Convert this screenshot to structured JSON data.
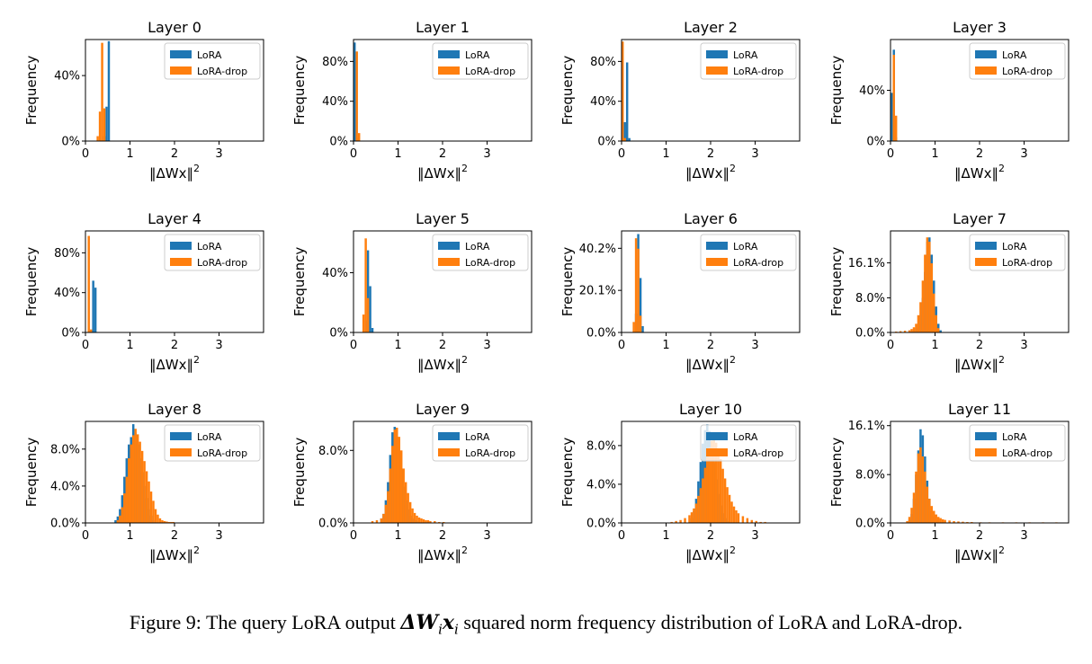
{
  "colors": {
    "lora": "#1f77b4",
    "lora_drop": "#ff7f0e"
  },
  "common": {
    "ylabel": "Frequency",
    "xlabel_prefix": "‖ΔWx‖",
    "xlabel_sup": "2",
    "xticks": [
      0,
      1,
      2,
      3
    ],
    "xlim": [
      0,
      4
    ],
    "legend": [
      "LoRA",
      "LoRA-drop"
    ],
    "legend_position": "top-right",
    "grid": false
  },
  "caption": {
    "prefix": "Figure 9: The query LoRA output ",
    "math": "ΔW",
    "math_sub1": "i",
    "math2": "x",
    "math_sub2": "i",
    "suffix": " squared norm frequency distribution of LoRA and LoRA-drop."
  },
  "chart_data": [
    {
      "type": "bar",
      "title": "Layer 0",
      "ylim": [
        0,
        62
      ],
      "yticks": [
        {
          "v": 0,
          "label": "0%"
        },
        {
          "v": 40,
          "label": "40%"
        }
      ],
      "bin_width": 0.05,
      "series": [
        {
          "name": "LoRA",
          "x": [
            0.4,
            0.45,
            0.5
          ],
          "values": [
            3,
            21,
            61
          ]
        },
        {
          "name": "LoRA-drop",
          "x": [
            0.25,
            0.3,
            0.35,
            0.4
          ],
          "values": [
            3,
            18,
            60,
            20
          ]
        }
      ]
    },
    {
      "type": "bar",
      "title": "Layer 1",
      "ylim": [
        0,
        102
      ],
      "yticks": [
        {
          "v": 0,
          "label": "0%"
        },
        {
          "v": 40,
          "label": "40%"
        },
        {
          "v": 80,
          "label": "80%"
        }
      ],
      "bin_width": 0.05,
      "series": [
        {
          "name": "LoRA",
          "x": [
            0.0,
            0.05
          ],
          "values": [
            99,
            3
          ]
        },
        {
          "name": "LoRA-drop",
          "x": [
            0.05,
            0.1
          ],
          "values": [
            90,
            8
          ]
        }
      ]
    },
    {
      "type": "bar",
      "title": "Layer 2",
      "ylim": [
        0,
        102
      ],
      "yticks": [
        {
          "v": 0,
          "label": "0%"
        },
        {
          "v": 40,
          "label": "40%"
        },
        {
          "v": 80,
          "label": "80%"
        }
      ],
      "bin_width": 0.05,
      "series": [
        {
          "name": "LoRA",
          "x": [
            0.0,
            0.05,
            0.1,
            0.15
          ],
          "values": [
            3,
            19,
            79,
            3
          ]
        },
        {
          "name": "LoRA-drop",
          "x": [
            0.0,
            0.05
          ],
          "values": [
            100,
            3
          ]
        }
      ]
    },
    {
      "type": "bar",
      "title": "Layer 3",
      "ylim": [
        0,
        80
      ],
      "yticks": [
        {
          "v": 0,
          "label": "0%"
        },
        {
          "v": 40,
          "label": "40%"
        }
      ],
      "bin_width": 0.05,
      "series": [
        {
          "name": "LoRA",
          "x": [
            0.0,
            0.05,
            0.1
          ],
          "values": [
            38,
            72,
            3
          ]
        },
        {
          "name": "LoRA-drop",
          "x": [
            0.05,
            0.1
          ],
          "values": [
            68,
            20
          ]
        }
      ]
    },
    {
      "type": "bar",
      "title": "Layer 4",
      "ylim": [
        0,
        102
      ],
      "yticks": [
        {
          "v": 0,
          "label": "0%"
        },
        {
          "v": 40,
          "label": "40%"
        },
        {
          "v": 80,
          "label": "80%"
        }
      ],
      "bin_width": 0.05,
      "series": [
        {
          "name": "LoRA",
          "x": [
            0.1,
            0.15,
            0.2
          ],
          "values": [
            2,
            52,
            45
          ]
        },
        {
          "name": "LoRA-drop",
          "x": [
            0.05,
            0.1
          ],
          "values": [
            97,
            3
          ]
        }
      ]
    },
    {
      "type": "bar",
      "title": "Layer 5",
      "ylim": [
        0,
        68
      ],
      "yticks": [
        {
          "v": 0,
          "label": "0%"
        },
        {
          "v": 40,
          "label": "40%"
        }
      ],
      "bin_width": 0.05,
      "series": [
        {
          "name": "LoRA",
          "x": [
            0.25,
            0.3,
            0.35,
            0.4
          ],
          "values": [
            8,
            55,
            31,
            3
          ]
        },
        {
          "name": "LoRA-drop",
          "x": [
            0.2,
            0.25,
            0.3
          ],
          "values": [
            12,
            63,
            23
          ]
        }
      ]
    },
    {
      "type": "bar",
      "title": "Layer 6",
      "ylim": [
        0,
        48.5
      ],
      "yticks": [
        {
          "v": 0,
          "label": "0.0%"
        },
        {
          "v": 20.1,
          "label": "20.1%"
        },
        {
          "v": 40.2,
          "label": "40.2%"
        }
      ],
      "bin_width": 0.05,
      "series": [
        {
          "name": "LoRA",
          "x": [
            0.3,
            0.35,
            0.4,
            0.45
          ],
          "values": [
            9,
            47,
            26,
            3
          ]
        },
        {
          "name": "LoRA-drop",
          "x": [
            0.25,
            0.3,
            0.35,
            0.4
          ],
          "values": [
            5,
            45,
            40,
            8
          ]
        }
      ]
    },
    {
      "type": "bar",
      "title": "Layer 7",
      "ylim": [
        0,
        23.5
      ],
      "yticks": [
        {
          "v": 0,
          "label": "0.0%"
        },
        {
          "v": 8.0,
          "label": "8.0%"
        },
        {
          "v": 16.1,
          "label": "16.1%"
        }
      ],
      "bin_width": 0.05,
      "series": [
        {
          "name": "LoRA",
          "x": [
            0.5,
            0.55,
            0.6,
            0.65,
            0.7,
            0.75,
            0.8,
            0.85,
            0.9,
            0.95,
            1.0,
            1.05,
            1.1
          ],
          "values": [
            0.5,
            1,
            2,
            4,
            8,
            14,
            21,
            22,
            18,
            12,
            6,
            2,
            0.5
          ]
        },
        {
          "name": "LoRA-drop",
          "x": [
            0.1,
            0.2,
            0.3,
            0.4,
            0.45,
            0.5,
            0.55,
            0.6,
            0.65,
            0.7,
            0.75,
            0.8,
            0.85,
            0.9,
            0.95,
            1.0,
            1.05
          ],
          "values": [
            0.2,
            0.3,
            0.4,
            0.5,
            0.8,
            1.2,
            2,
            4,
            7,
            12,
            18,
            22,
            21,
            16,
            9,
            4,
            1
          ]
        }
      ]
    },
    {
      "type": "bar",
      "title": "Layer 8",
      "ylim": [
        0,
        11
      ],
      "yticks": [
        {
          "v": 0,
          "label": "0.0%"
        },
        {
          "v": 4.0,
          "label": "4.0%"
        },
        {
          "v": 8.0,
          "label": "8.0%"
        }
      ],
      "bin_width": 0.05,
      "series": [
        {
          "name": "LoRA",
          "x": [
            0.65,
            0.7,
            0.75,
            0.8,
            0.85,
            0.9,
            0.95,
            1.0,
            1.05,
            1.1,
            1.15,
            1.2,
            1.25,
            1.3,
            1.35,
            1.4,
            1.45,
            1.5
          ],
          "values": [
            0.3,
            0.7,
            1.5,
            3,
            5,
            7,
            8.5,
            9.3,
            10.7,
            9.8,
            8.5,
            7,
            5.5,
            4,
            2.7,
            1.5,
            0.8,
            0.3
          ]
        },
        {
          "name": "LoRA-drop",
          "x": [
            0.7,
            0.75,
            0.8,
            0.85,
            0.9,
            0.95,
            1.0,
            1.05,
            1.1,
            1.15,
            1.2,
            1.25,
            1.3,
            1.35,
            1.4,
            1.45,
            1.5,
            1.55,
            1.6,
            1.65,
            1.7,
            1.75,
            1.8,
            1.85,
            1.9,
            1.95
          ],
          "values": [
            0.3,
            0.8,
            1.7,
            3.2,
            5,
            7,
            8.5,
            9.5,
            10.2,
            9.6,
            8.8,
            7.8,
            6.7,
            5.6,
            4.5,
            3.4,
            2.4,
            1.5,
            0.9,
            0.5,
            0.3,
            0.2,
            0.15,
            0.1,
            0.1,
            0.1
          ]
        }
      ]
    },
    {
      "type": "bar",
      "title": "Layer 9",
      "ylim": [
        0,
        11.2
      ],
      "yticks": [
        {
          "v": 0,
          "label": "0.0%"
        },
        {
          "v": 8.0,
          "label": "8.0%"
        }
      ],
      "bin_width": 0.05,
      "series": [
        {
          "name": "LoRA",
          "x": [
            0.6,
            0.65,
            0.7,
            0.75,
            0.8,
            0.85,
            0.9,
            0.95,
            1.0,
            1.05,
            1.1,
            1.15,
            1.2,
            1.25,
            1.3,
            1.35,
            1.4
          ],
          "values": [
            0.5,
            1,
            2.5,
            4.5,
            7.5,
            10,
            10.6,
            9.5,
            8,
            6,
            4,
            2.5,
            1.5,
            0.8,
            0.5,
            0.3,
            0.2
          ]
        },
        {
          "name": "LoRA-drop",
          "x": [
            0.4,
            0.5,
            0.6,
            0.65,
            0.7,
            0.75,
            0.8,
            0.85,
            0.9,
            0.95,
            1.0,
            1.05,
            1.1,
            1.15,
            1.2,
            1.25,
            1.3,
            1.35,
            1.4,
            1.45,
            1.5,
            1.55,
            1.6,
            1.65,
            1.7,
            1.8,
            1.9,
            2.0
          ],
          "values": [
            0.2,
            0.3,
            0.5,
            1,
            2,
            3.5,
            6,
            8.5,
            10.3,
            10.5,
            9.5,
            8,
            6,
            4.5,
            3.3,
            2.3,
            1.6,
            1.1,
            0.8,
            0.6,
            0.5,
            0.4,
            0.3,
            0.3,
            0.2,
            0.2,
            0.1,
            0.1
          ]
        }
      ]
    },
    {
      "type": "bar",
      "title": "Layer 10",
      "ylim": [
        0,
        10.5
      ],
      "yticks": [
        {
          "v": 0,
          "label": "0.0%"
        },
        {
          "v": 4.0,
          "label": "4.0%"
        },
        {
          "v": 8.0,
          "label": "8.0%"
        }
      ],
      "bin_width": 0.05,
      "series": [
        {
          "name": "LoRA",
          "x": [
            1.55,
            1.6,
            1.65,
            1.7,
            1.75,
            1.8,
            1.85,
            1.9,
            1.95,
            2.0,
            2.05,
            2.1,
            2.15,
            2.2,
            2.25,
            2.3,
            2.35
          ],
          "values": [
            0.5,
            1.2,
            2.5,
            4.3,
            6.3,
            8.2,
            9.6,
            10.2,
            9.5,
            8,
            6.2,
            4.5,
            3,
            1.8,
            1,
            0.5,
            0.2
          ]
        },
        {
          "name": "LoRA-drop",
          "x": [
            1.1,
            1.2,
            1.3,
            1.4,
            1.5,
            1.55,
            1.6,
            1.65,
            1.7,
            1.75,
            1.8,
            1.85,
            1.9,
            1.95,
            2.0,
            2.05,
            2.1,
            2.15,
            2.2,
            2.25,
            2.3,
            2.35,
            2.4,
            2.45,
            2.5,
            2.55,
            2.6,
            2.7,
            2.8,
            2.9,
            3.0,
            3.1,
            3.2
          ],
          "values": [
            0.1,
            0.2,
            0.3,
            0.5,
            0.8,
            1.1,
            1.5,
            2,
            2.8,
            3.6,
            4.6,
            5.7,
            6.8,
            7.8,
            8.5,
            8.7,
            8.3,
            7.6,
            6.6,
            5.6,
            4.6,
            3.7,
            2.9,
            2.2,
            1.7,
            1.3,
            1,
            0.7,
            0.5,
            0.3,
            0.2,
            0.1,
            0.1
          ]
        }
      ]
    },
    {
      "type": "bar",
      "title": "Layer 11",
      "ylim": [
        0,
        16.8
      ],
      "yticks": [
        {
          "v": 0,
          "label": "0.0%"
        },
        {
          "v": 8.0,
          "label": "8.0%"
        },
        {
          "v": 16.1,
          "label": "16.1%"
        }
      ],
      "bin_width": 0.05,
      "series": [
        {
          "name": "LoRA",
          "x": [
            0.4,
            0.45,
            0.5,
            0.55,
            0.6,
            0.65,
            0.7,
            0.75,
            0.8,
            0.85,
            0.9,
            0.95,
            1.0
          ],
          "values": [
            0.5,
            1.5,
            4,
            8,
            12,
            15.5,
            14.5,
            11,
            7,
            4,
            2,
            1,
            0.5
          ]
        },
        {
          "name": "LoRA-drop",
          "x": [
            0.35,
            0.4,
            0.45,
            0.5,
            0.55,
            0.6,
            0.65,
            0.7,
            0.75,
            0.8,
            0.85,
            0.9,
            0.95,
            1.0,
            1.05,
            1.1,
            1.15,
            1.2,
            1.3,
            1.4,
            1.5,
            1.6,
            1.7,
            1.8,
            2.0,
            2.2,
            2.5,
            2.8,
            3.1,
            3.4,
            3.7
          ],
          "values": [
            0.3,
            1,
            2.5,
            5,
            8.5,
            11.5,
            12.5,
            11,
            8.5,
            6,
            4,
            2.8,
            2,
            1.4,
            1,
            0.8,
            0.6,
            0.5,
            0.4,
            0.3,
            0.25,
            0.2,
            0.15,
            0.15,
            0.1,
            0.1,
            0.1,
            0.1,
            0.1,
            0.1,
            0.1
          ]
        }
      ]
    }
  ]
}
